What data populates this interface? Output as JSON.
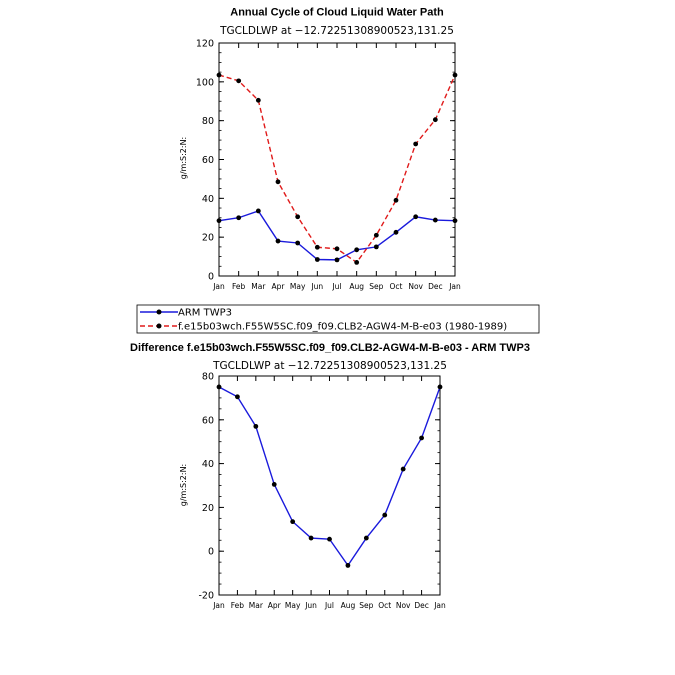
{
  "chart_data": [
    {
      "type": "line",
      "title": "Annual Cycle of Cloud Liquid Water Path",
      "subtitle": "TGCLDLWP  at  −12.72251308900523,131.25",
      "ylabel": "g/m:S:2:N:",
      "xlabel": "",
      "categories": [
        "Jan",
        "Feb",
        "Mar",
        "Apr",
        "May",
        "Jun",
        "Jul",
        "Aug",
        "Sep",
        "Oct",
        "Nov",
        "Dec",
        "Jan"
      ],
      "ylim": [
        0,
        120
      ],
      "yticks": [
        0,
        20,
        40,
        60,
        80,
        100,
        120
      ],
      "series": [
        {
          "name": "ARM TWP3",
          "color": "#1a1adc",
          "dash": "solid",
          "values": [
            28.5,
            30,
            33.5,
            18,
            17,
            8.5,
            8.3,
            13.5,
            15,
            22.5,
            30.5,
            28.8,
            28.5
          ]
        },
        {
          "name": "f.e15b03wch.F55W5SC.f09_f09.CLB2-AGW4-M-B-e03 (1980-1989)",
          "color": "#e01a1a",
          "dash": "dashed",
          "values": [
            103.5,
            100.5,
            90.5,
            48.5,
            30.5,
            14.8,
            14,
            7,
            21,
            39,
            68,
            80.5,
            103.5
          ]
        }
      ]
    },
    {
      "type": "line",
      "title": "Difference f.e15b03wch.F55W5SC.f09_f09.CLB2-AGW4-M-B-e03 - ARM TWP3",
      "subtitle": "TGCLDLWP  at  −12.72251308900523,131.25",
      "ylabel": "g/m:S:2:N:",
      "xlabel": "",
      "categories": [
        "Jan",
        "Feb",
        "Mar",
        "Apr",
        "May",
        "Jun",
        "Jul",
        "Aug",
        "Sep",
        "Oct",
        "Nov",
        "Dec",
        "Jan"
      ],
      "ylim": [
        -20,
        80
      ],
      "yticks": [
        -20,
        0,
        20,
        40,
        60,
        80
      ],
      "series": [
        {
          "name": "Difference",
          "color": "#1a1adc",
          "dash": "solid",
          "values": [
            75,
            70.5,
            57,
            30.5,
            13.5,
            6,
            5.5,
            -6.5,
            6,
            16.5,
            37.5,
            51.7,
            75
          ]
        }
      ]
    }
  ]
}
